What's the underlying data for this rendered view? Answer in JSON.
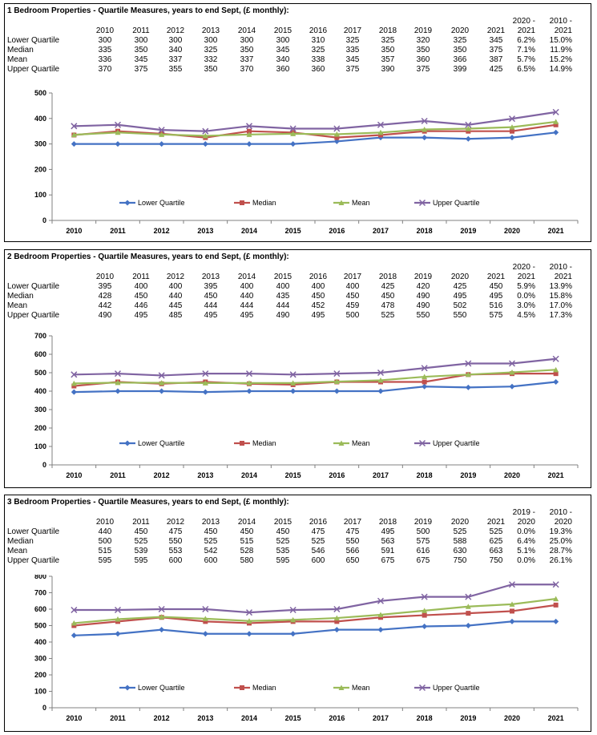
{
  "colors": {
    "lower_quartile": "#4472C4",
    "median": "#C0504D",
    "mean": "#9BBB59",
    "upper_quartile": "#8064A2"
  },
  "legend_labels": [
    "Lower Quartile",
    "Median",
    "Mean",
    "Upper Quartile"
  ],
  "panels": [
    {
      "title": "1 Bedroom Properties - Quartile Measures, years to end Sept, (£ monthly):",
      "years": [
        "2010",
        "2011",
        "2012",
        "2013",
        "2014",
        "2015",
        "2016",
        "2017",
        "2018",
        "2019",
        "2020",
        "2021"
      ],
      "pct_headers": [
        "2020 -\n2021",
        "2010 -\n2021"
      ],
      "pct_head_a": [
        "2020 -",
        "2021"
      ],
      "pct_head_b": [
        "2010 -",
        "2021"
      ],
      "rows": [
        {
          "label": "Lower Quartile",
          "values": [
            "300",
            "300",
            "300",
            "300",
            "300",
            "300",
            "310",
            "325",
            "325",
            "320",
            "325",
            "345"
          ],
          "pct1": "6.2%",
          "pct2": "15.0%"
        },
        {
          "label": "Median",
          "values": [
            "335",
            "350",
            "340",
            "325",
            "350",
            "345",
            "325",
            "335",
            "350",
            "350",
            "350",
            "375"
          ],
          "pct1": "7.1%",
          "pct2": "11.9%"
        },
        {
          "label": "Mean",
          "values": [
            "336",
            "345",
            "337",
            "332",
            "337",
            "340",
            "338",
            "345",
            "357",
            "360",
            "366",
            "387"
          ],
          "pct1": "5.7%",
          "pct2": "15.2%"
        },
        {
          "label": "Upper Quartile",
          "values": [
            "370",
            "375",
            "355",
            "350",
            "370",
            "360",
            "360",
            "375",
            "390",
            "375",
            "399",
            "425"
          ],
          "pct1": "6.5%",
          "pct2": "14.9%"
        }
      ],
      "y_ticks": [
        "0",
        "100",
        "200",
        "300",
        "400",
        "500"
      ]
    },
    {
      "title": "2 Bedroom Properties - Quartile Measures, years to end Sept, (£ monthly):",
      "years": [
        "2010",
        "2011",
        "2012",
        "2013",
        "2014",
        "2015",
        "2016",
        "2017",
        "2018",
        "2019",
        "2020",
        "2021"
      ],
      "pct_head_a": [
        "2020 -",
        "2021"
      ],
      "pct_head_b": [
        "2010 -",
        "2021"
      ],
      "rows": [
        {
          "label": "Lower Quartile",
          "values": [
            "395",
            "400",
            "400",
            "395",
            "400",
            "400",
            "400",
            "400",
            "425",
            "420",
            "425",
            "450"
          ],
          "pct1": "5.9%",
          "pct2": "13.9%"
        },
        {
          "label": "Median",
          "values": [
            "428",
            "450",
            "440",
            "450",
            "440",
            "435",
            "450",
            "450",
            "450",
            "490",
            "495",
            "495"
          ],
          "pct1": "0.0%",
          "pct2": "15.8%"
        },
        {
          "label": "Mean",
          "values": [
            "442",
            "446",
            "445",
            "444",
            "444",
            "444",
            "452",
            "459",
            "478",
            "490",
            "502",
            "516"
          ],
          "pct1": "3.0%",
          "pct2": "17.0%"
        },
        {
          "label": "Upper Quartile",
          "values": [
            "490",
            "495",
            "485",
            "495",
            "495",
            "490",
            "495",
            "500",
            "525",
            "550",
            "550",
            "575"
          ],
          "pct1": "4.5%",
          "pct2": "17.3%"
        }
      ],
      "y_ticks": [
        "0",
        "100",
        "200",
        "300",
        "400",
        "500",
        "600",
        "700"
      ]
    },
    {
      "title": "3 Bedroom Properties - Quartile Measures, years to end Sept, (£ monthly):",
      "years": [
        "2010",
        "2011",
        "2012",
        "2013",
        "2014",
        "2015",
        "2016",
        "2017",
        "2018",
        "2019",
        "2020",
        "2021"
      ],
      "pct_head_a": [
        "2019 -",
        "2020"
      ],
      "pct_head_b": [
        "2010 -",
        "2020"
      ],
      "rows": [
        {
          "label": "Lower Quartile",
          "values": [
            "440",
            "450",
            "475",
            "450",
            "450",
            "450",
            "475",
            "475",
            "495",
            "500",
            "525",
            "525"
          ],
          "pct1": "0.0%",
          "pct2": "19.3%"
        },
        {
          "label": "Median",
          "values": [
            "500",
            "525",
            "550",
            "525",
            "515",
            "525",
            "525",
            "550",
            "563",
            "575",
            "588",
            "625"
          ],
          "pct1": "6.4%",
          "pct2": "25.0%"
        },
        {
          "label": "Mean",
          "values": [
            "515",
            "539",
            "553",
            "542",
            "528",
            "535",
            "546",
            "566",
            "591",
            "616",
            "630",
            "663"
          ],
          "pct1": "5.1%",
          "pct2": "28.7%"
        },
        {
          "label": "Upper Quartile",
          "values": [
            "595",
            "595",
            "600",
            "600",
            "580",
            "595",
            "600",
            "650",
            "675",
            "675",
            "750",
            "750"
          ],
          "pct1": "0.0%",
          "pct2": "26.1%"
        }
      ],
      "y_ticks": [
        "0",
        "100",
        "200",
        "300",
        "400",
        "500",
        "600",
        "700",
        "800"
      ]
    }
  ],
  "chart_data": [
    {
      "type": "line",
      "title": "1 Bedroom Properties - Quartile Measures, years to end Sept, (£ monthly):",
      "x": [
        2010,
        2011,
        2012,
        2013,
        2014,
        2015,
        2016,
        2017,
        2018,
        2019,
        2020,
        2021
      ],
      "ylim": [
        0,
        500
      ],
      "y_ticks": [
        0,
        100,
        200,
        300,
        400,
        500
      ],
      "legend_position": "inside-bottom",
      "series": [
        {
          "name": "Lower Quartile",
          "values": [
            300,
            300,
            300,
            300,
            300,
            300,
            310,
            325,
            325,
            320,
            325,
            345
          ]
        },
        {
          "name": "Median",
          "values": [
            335,
            350,
            340,
            325,
            350,
            345,
            325,
            335,
            350,
            350,
            350,
            375
          ]
        },
        {
          "name": "Mean",
          "values": [
            336,
            345,
            337,
            332,
            337,
            340,
            338,
            345,
            357,
            360,
            366,
            387
          ]
        },
        {
          "name": "Upper Quartile",
          "values": [
            370,
            375,
            355,
            350,
            370,
            360,
            360,
            375,
            390,
            375,
            399,
            425
          ]
        }
      ]
    },
    {
      "type": "line",
      "title": "2 Bedroom Properties - Quartile Measures, years to end Sept, (£ monthly):",
      "x": [
        2010,
        2011,
        2012,
        2013,
        2014,
        2015,
        2016,
        2017,
        2018,
        2019,
        2020,
        2021
      ],
      "ylim": [
        0,
        700
      ],
      "y_ticks": [
        0,
        100,
        200,
        300,
        400,
        500,
        600,
        700
      ],
      "legend_position": "inside-bottom",
      "series": [
        {
          "name": "Lower Quartile",
          "values": [
            395,
            400,
            400,
            395,
            400,
            400,
            400,
            400,
            425,
            420,
            425,
            450
          ]
        },
        {
          "name": "Median",
          "values": [
            428,
            450,
            440,
            450,
            440,
            435,
            450,
            450,
            450,
            490,
            495,
            495
          ]
        },
        {
          "name": "Mean",
          "values": [
            442,
            446,
            445,
            444,
            444,
            444,
            452,
            459,
            478,
            490,
            502,
            516
          ]
        },
        {
          "name": "Upper Quartile",
          "values": [
            490,
            495,
            485,
            495,
            495,
            490,
            495,
            500,
            525,
            550,
            550,
            575
          ]
        }
      ]
    },
    {
      "type": "line",
      "title": "3 Bedroom Properties - Quartile Measures, years to end Sept, (£ monthly):",
      "x": [
        2010,
        2011,
        2012,
        2013,
        2014,
        2015,
        2016,
        2017,
        2018,
        2019,
        2020,
        2021
      ],
      "ylim": [
        0,
        800
      ],
      "y_ticks": [
        0,
        100,
        200,
        300,
        400,
        500,
        600,
        700,
        800
      ],
      "legend_position": "inside-bottom",
      "series": [
        {
          "name": "Lower Quartile",
          "values": [
            440,
            450,
            475,
            450,
            450,
            450,
            475,
            475,
            495,
            500,
            525,
            525
          ]
        },
        {
          "name": "Median",
          "values": [
            500,
            525,
            550,
            525,
            515,
            525,
            525,
            550,
            563,
            575,
            588,
            625
          ]
        },
        {
          "name": "Mean",
          "values": [
            515,
            539,
            553,
            542,
            528,
            535,
            546,
            566,
            591,
            616,
            630,
            663
          ]
        },
        {
          "name": "Upper Quartile",
          "values": [
            595,
            595,
            600,
            600,
            580,
            595,
            600,
            650,
            675,
            675,
            750,
            750
          ]
        }
      ]
    }
  ]
}
